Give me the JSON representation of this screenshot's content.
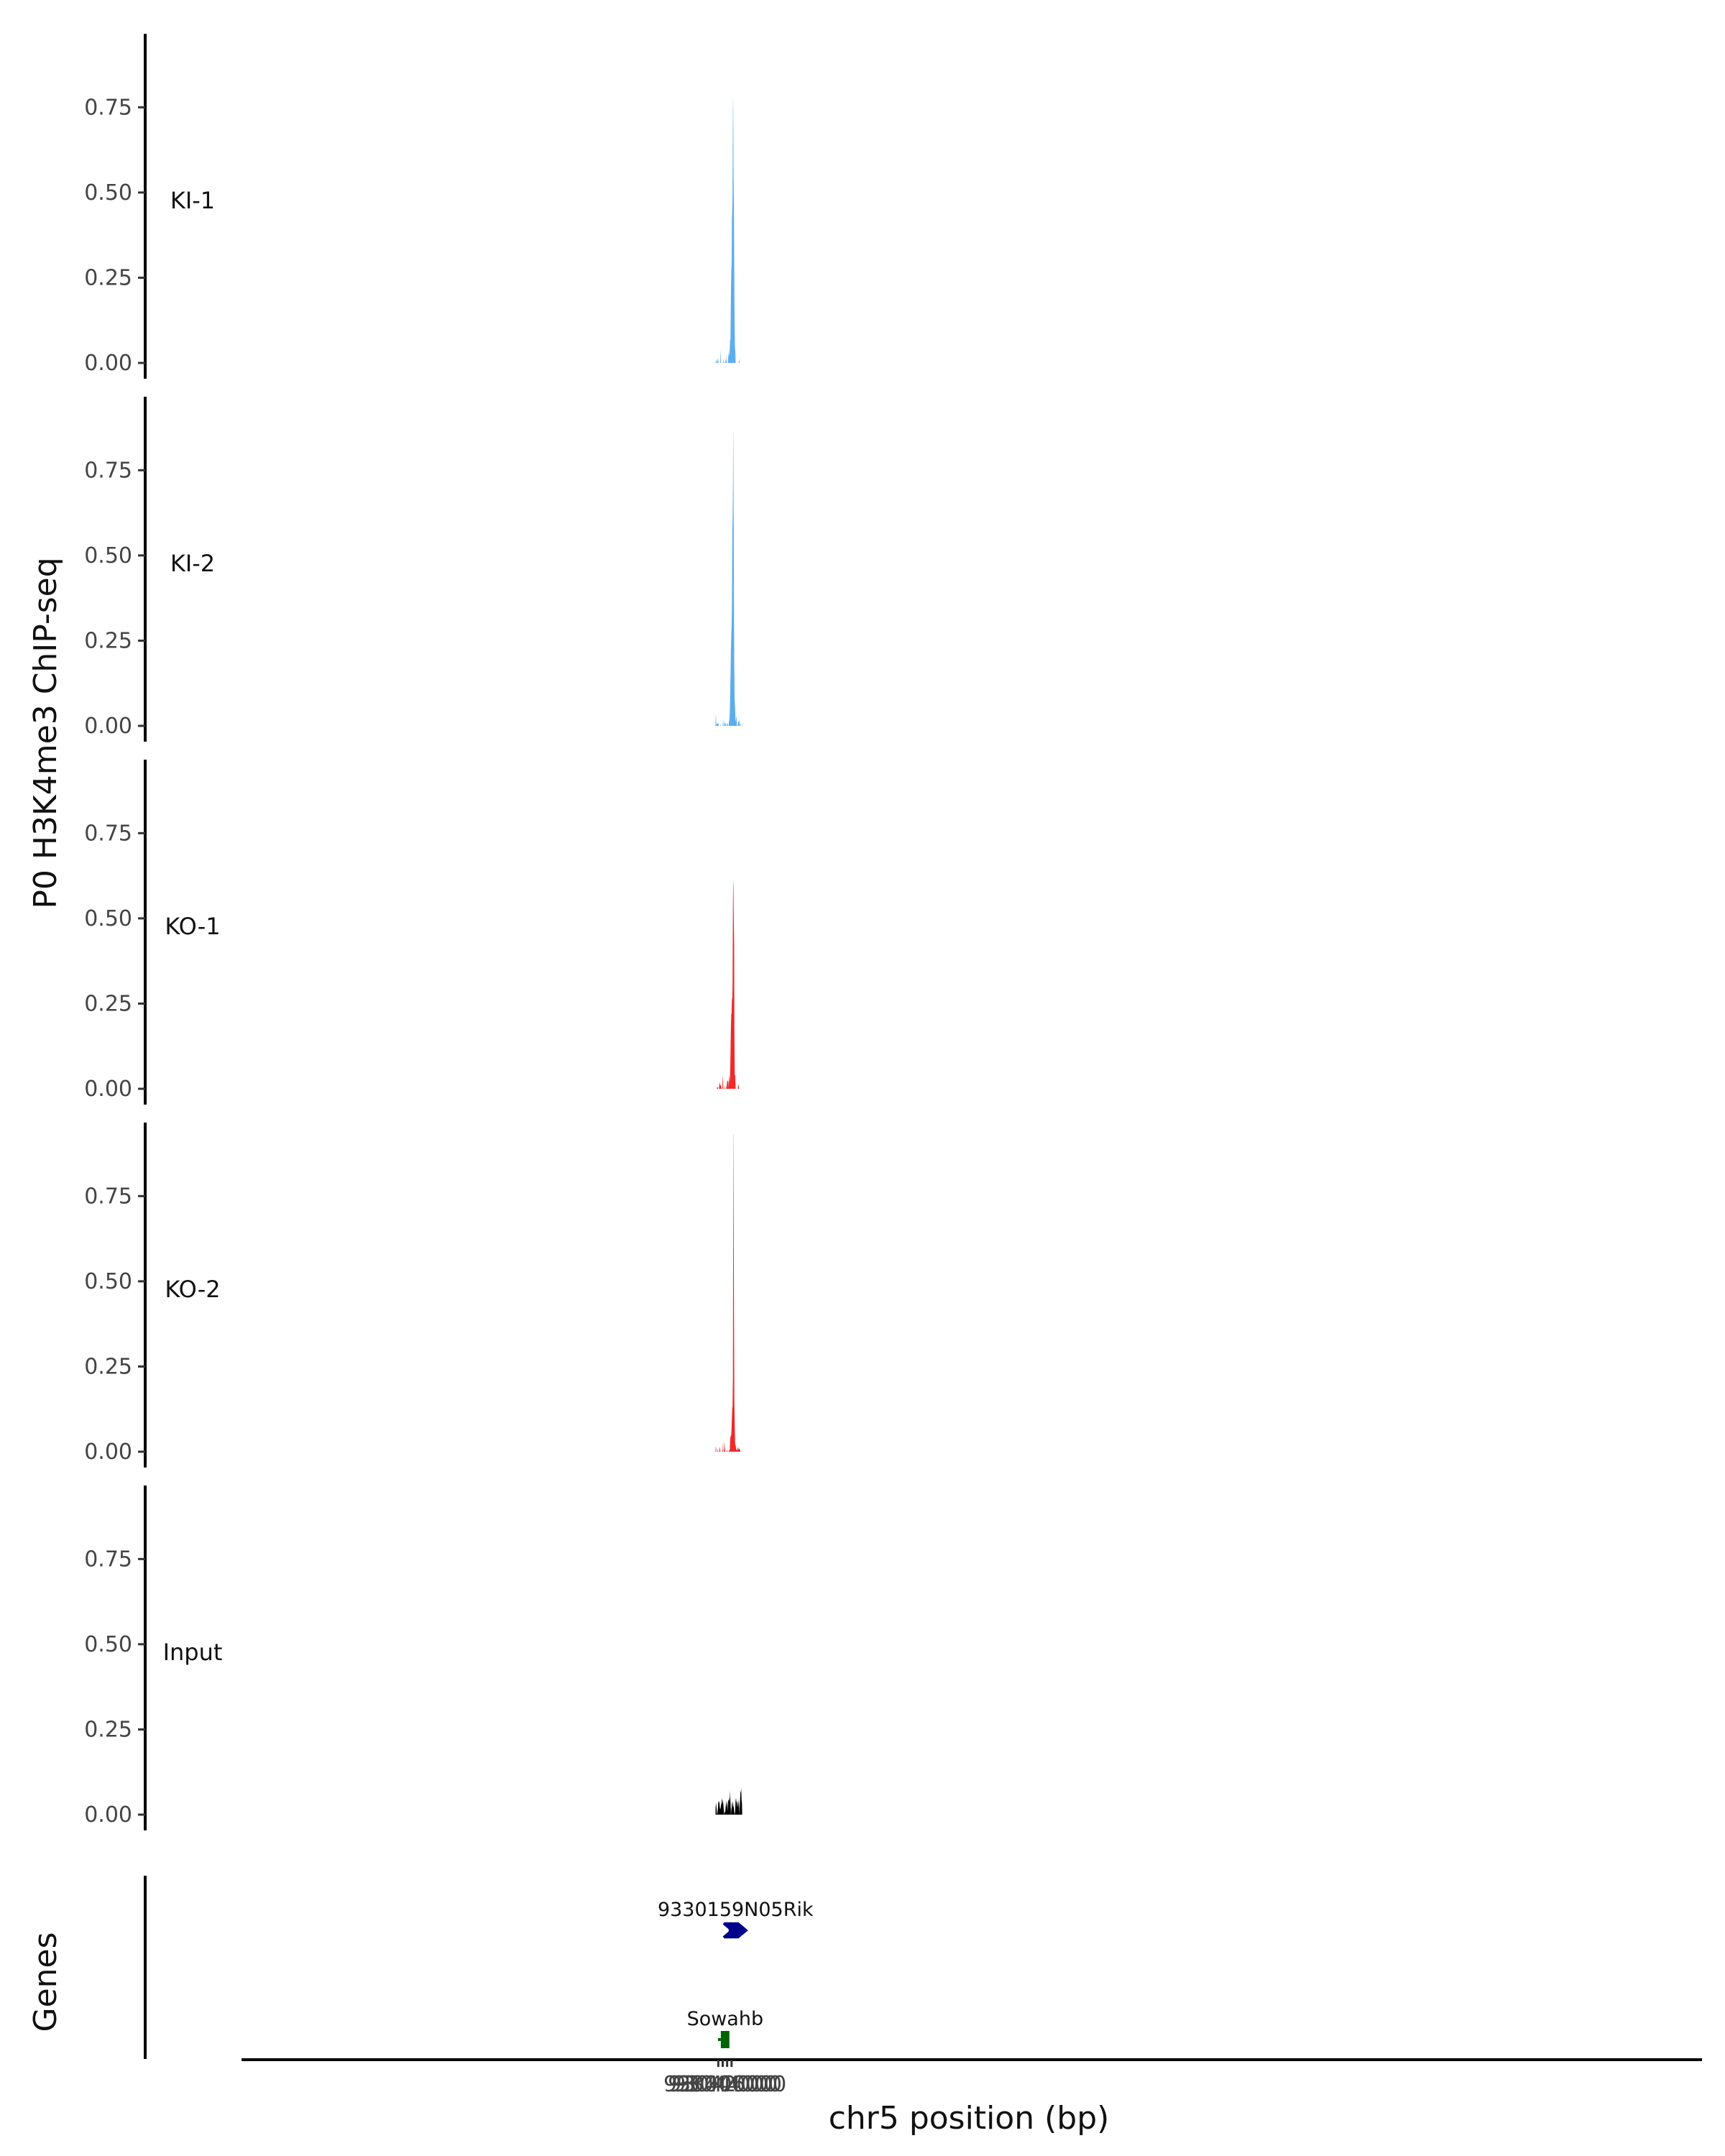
{
  "chart_data": {
    "type": "area",
    "ylabel": "P0 H3K4me3 ChIP-seq",
    "xlabel": "chr5 position (bp)",
    "xlim": [
      92826000,
      93480000
    ],
    "ylim": [
      0,
      0.97
    ],
    "yticks": [
      "0.00",
      "0.25",
      "0.50",
      "0.75"
    ],
    "ytick_values": [
      0,
      0.25,
      0.5,
      0.75
    ],
    "xticks": [
      "93040000",
      "93042000",
      "93044000",
      "93046000"
    ],
    "xtick_values": [
      93040000,
      93042000,
      93044000,
      93046000
    ],
    "series": [
      {
        "name": "KI-1",
        "color": "#5DADEC",
        "points": [
          [
            93038800,
            0.0
          ],
          [
            93039000,
            0.01
          ],
          [
            93039400,
            0.0
          ],
          [
            93039500,
            0.0
          ],
          [
            93039800,
            0.015
          ],
          [
            93040100,
            0.0
          ],
          [
            93040900,
            0.0
          ],
          [
            93041050,
            0.04
          ],
          [
            93041250,
            0.0
          ],
          [
            93042200,
            0.0
          ],
          [
            93042400,
            0.012
          ],
          [
            93042650,
            0.0
          ],
          [
            93043100,
            0.0
          ],
          [
            93043300,
            0.012
          ],
          [
            93043550,
            0.0
          ],
          [
            93043600,
            0.0
          ],
          [
            93043750,
            0.025
          ],
          [
            93043950,
            0.0
          ],
          [
            93044400,
            0.0
          ],
          [
            93044550,
            0.04
          ],
          [
            93044700,
            0.015
          ],
          [
            93044850,
            0.03
          ],
          [
            93045000,
            0.02
          ],
          [
            93045200,
            0.045
          ],
          [
            93045350,
            0.07
          ],
          [
            93045500,
            0.065
          ],
          [
            93045700,
            0.2
          ],
          [
            93045900,
            0.27
          ],
          [
            93046050,
            0.3
          ],
          [
            93046200,
            0.42
          ],
          [
            93046350,
            0.46
          ],
          [
            93046450,
            0.5
          ],
          [
            93046550,
            0.65
          ],
          [
            93046650,
            0.77
          ],
          [
            93046720,
            0.77
          ],
          [
            93046800,
            0.7
          ],
          [
            93046900,
            0.55
          ],
          [
            93047050,
            0.45
          ],
          [
            93047200,
            0.3
          ],
          [
            93047350,
            0.13
          ],
          [
            93047500,
            0.05
          ],
          [
            93047700,
            0.03
          ],
          [
            93047850,
            0.0
          ],
          [
            93049300,
            0.0
          ],
          [
            93049500,
            0.012
          ],
          [
            93049700,
            0.0
          ]
        ]
      },
      {
        "name": "KI-2",
        "color": "#5DADEC",
        "points": [
          [
            93038740,
            0.0
          ],
          [
            93038850,
            0.03
          ],
          [
            93038960,
            0.03
          ],
          [
            93039100,
            0.0
          ],
          [
            93039300,
            0.007
          ],
          [
            93039600,
            0.005
          ],
          [
            93039950,
            0.01
          ],
          [
            93040200,
            0.0
          ],
          [
            93040900,
            0.0
          ],
          [
            93041050,
            0.005
          ],
          [
            93041200,
            0.0
          ],
          [
            93042000,
            0.0
          ],
          [
            93042200,
            0.02
          ],
          [
            93042400,
            0.0
          ],
          [
            93042600,
            0.0
          ],
          [
            93042900,
            0.012
          ],
          [
            93043300,
            0.005
          ],
          [
            93043500,
            0.0
          ],
          [
            93043650,
            0.0
          ],
          [
            93044000,
            0.01
          ],
          [
            93044400,
            0.0
          ],
          [
            93044650,
            0.0
          ],
          [
            93044850,
            0.02
          ],
          [
            93045050,
            0.01
          ],
          [
            93045250,
            0.05
          ],
          [
            93045500,
            0.14
          ],
          [
            93045700,
            0.22
          ],
          [
            93045900,
            0.27
          ],
          [
            93046050,
            0.3
          ],
          [
            93046200,
            0.37
          ],
          [
            93046350,
            0.58
          ],
          [
            93046500,
            0.62
          ],
          [
            93046650,
            0.72
          ],
          [
            93046780,
            0.86
          ],
          [
            93046830,
            0.86
          ],
          [
            93046900,
            0.7
          ],
          [
            93047050,
            0.4
          ],
          [
            93047200,
            0.2
          ],
          [
            93047400,
            0.08
          ],
          [
            93047600,
            0.05
          ],
          [
            93047800,
            0.01
          ],
          [
            93048000,
            0.02
          ],
          [
            93048200,
            0.03
          ],
          [
            93048450,
            0.0
          ],
          [
            93048800,
            0.0
          ],
          [
            93049050,
            0.015
          ],
          [
            93049300,
            0.01
          ],
          [
            93049550,
            0.02
          ],
          [
            93049700,
            0.0
          ],
          [
            93049900,
            0.0
          ],
          [
            93050100,
            0.008
          ],
          [
            93050300,
            0.0
          ],
          [
            93050600,
            0.0
          ],
          [
            93050700,
            0.008
          ],
          [
            93050780,
            0.0
          ]
        ]
      },
      {
        "name": "KO-1",
        "color": "#EE2A2A",
        "points": [
          [
            93039300,
            0.0
          ],
          [
            93039500,
            0.006
          ],
          [
            93039800,
            0.004
          ],
          [
            93039950,
            0.0
          ],
          [
            93040300,
            0.0
          ],
          [
            93040600,
            0.02
          ],
          [
            93040900,
            0.01
          ],
          [
            93041200,
            0.01
          ],
          [
            93041500,
            0.0
          ],
          [
            93041850,
            0.0
          ],
          [
            93042000,
            0.035
          ],
          [
            93042100,
            0.037
          ],
          [
            93042300,
            0.0
          ],
          [
            93042650,
            0.0
          ],
          [
            93042800,
            0.01
          ],
          [
            93042950,
            0.0
          ],
          [
            93043400,
            0.0
          ],
          [
            93043550,
            0.01
          ],
          [
            93043700,
            0.0
          ],
          [
            93043750,
            0.0
          ],
          [
            93044000,
            0.025
          ],
          [
            93044150,
            0.02
          ],
          [
            93044350,
            0.025
          ],
          [
            93044550,
            0.02
          ],
          [
            93044700,
            0.0
          ],
          [
            93044650,
            0.0
          ],
          [
            93044850,
            0.025
          ],
          [
            93045050,
            0.04
          ],
          [
            93045250,
            0.02
          ],
          [
            93045450,
            0.07
          ],
          [
            93045650,
            0.17
          ],
          [
            93045850,
            0.22
          ],
          [
            93046000,
            0.22
          ],
          [
            93046200,
            0.27
          ],
          [
            93046350,
            0.26
          ],
          [
            93046450,
            0.3
          ],
          [
            93046600,
            0.52
          ],
          [
            93046700,
            0.6
          ],
          [
            93046800,
            0.61
          ],
          [
            93046900,
            0.57
          ],
          [
            93047000,
            0.5
          ],
          [
            93047150,
            0.43
          ],
          [
            93047300,
            0.15
          ],
          [
            93047450,
            0.04
          ],
          [
            93047650,
            0.04
          ],
          [
            93047850,
            0.0
          ],
          [
            93048800,
            0.0
          ],
          [
            93049000,
            0.015
          ],
          [
            93049300,
            0.005
          ],
          [
            93049500,
            0.0
          ]
        ]
      },
      {
        "name": "KO-2",
        "color": "#EE2A2A",
        "points": [
          [
            93038740,
            0.0
          ],
          [
            93038820,
            0.015
          ],
          [
            93039000,
            0.01
          ],
          [
            93039100,
            0.0
          ],
          [
            93039600,
            0.0
          ],
          [
            93039800,
            0.008
          ],
          [
            93040000,
            0.0
          ],
          [
            93040400,
            0.0
          ],
          [
            93040700,
            0.015
          ],
          [
            93040950,
            0.0
          ],
          [
            93041700,
            0.0
          ],
          [
            93041950,
            0.005
          ],
          [
            93042000,
            0.03
          ],
          [
            93042200,
            0.0
          ],
          [
            93042500,
            0.0
          ],
          [
            93042700,
            0.03
          ],
          [
            93042900,
            0.01
          ],
          [
            93043100,
            0.0
          ],
          [
            93043350,
            0.0
          ],
          [
            93043550,
            0.005
          ],
          [
            93043700,
            0.0
          ],
          [
            93044000,
            0.0
          ],
          [
            93044200,
            0.005
          ],
          [
            93044400,
            0.0
          ],
          [
            93044700,
            0.0
          ],
          [
            93045000,
            0.005
          ],
          [
            93045200,
            0.005
          ],
          [
            93045400,
            0.04
          ],
          [
            93045500,
            0.05
          ],
          [
            93045700,
            0.04
          ],
          [
            93045950,
            0.06
          ],
          [
            93046100,
            0.09
          ],
          [
            93046300,
            0.13
          ],
          [
            93046450,
            0.13
          ],
          [
            93046600,
            0.22
          ],
          [
            93046700,
            0.55
          ],
          [
            93046800,
            0.93
          ],
          [
            93046870,
            0.93
          ],
          [
            93046950,
            0.7
          ],
          [
            93047100,
            0.4
          ],
          [
            93047250,
            0.15
          ],
          [
            93047450,
            0.07
          ],
          [
            93047650,
            0.02
          ],
          [
            93047800,
            0.02
          ],
          [
            93048000,
            0.01
          ],
          [
            93048300,
            0.005
          ],
          [
            93048600,
            0.005
          ],
          [
            93048900,
            0.015
          ],
          [
            93049200,
            0.005
          ],
          [
            93049500,
            0.01
          ],
          [
            93049850,
            0.005
          ],
          [
            93050000,
            0.0
          ]
        ]
      },
      {
        "name": "Input",
        "color": "#000000",
        "points": [
          [
            93038740,
            0.0
          ],
          [
            93038800,
            0.02
          ],
          [
            93039000,
            0.035
          ],
          [
            93039200,
            0.02
          ],
          [
            93039400,
            0.0
          ],
          [
            93039600,
            0.005
          ],
          [
            93039850,
            0.02
          ],
          [
            93040050,
            0.04
          ],
          [
            93040250,
            0.035
          ],
          [
            93040450,
            0.04
          ],
          [
            93040650,
            0.025
          ],
          [
            93040850,
            0.015
          ],
          [
            93041100,
            0.02
          ],
          [
            93041300,
            0.03
          ],
          [
            93041500,
            0.035
          ],
          [
            93041700,
            0.05
          ],
          [
            93041900,
            0.03
          ],
          [
            93042100,
            0.045
          ],
          [
            93042300,
            0.03
          ],
          [
            93042500,
            0.015
          ],
          [
            93042700,
            0.0
          ],
          [
            93042900,
            0.01
          ],
          [
            93043100,
            0.005
          ],
          [
            93043300,
            0.02
          ],
          [
            93043500,
            0.04
          ],
          [
            93043700,
            0.02
          ],
          [
            93043900,
            0.04
          ],
          [
            93044100,
            0.03
          ],
          [
            93044300,
            0.01
          ],
          [
            93044500,
            0.045
          ],
          [
            93044700,
            0.04
          ],
          [
            93044900,
            0.05
          ],
          [
            93045100,
            0.035
          ],
          [
            93045300,
            0.07
          ],
          [
            93045500,
            0.04
          ],
          [
            93045650,
            0.01
          ],
          [
            93045700,
            0.0
          ],
          [
            93045750,
            0.0
          ],
          [
            93045850,
            0.015
          ],
          [
            93046050,
            0.02
          ],
          [
            93046250,
            0.04
          ],
          [
            93046450,
            0.02
          ],
          [
            93046650,
            0.04
          ],
          [
            93046850,
            0.025
          ],
          [
            93047050,
            0.02
          ],
          [
            93047250,
            0.005
          ],
          [
            93047400,
            0.0
          ],
          [
            93047600,
            0.01
          ],
          [
            93047800,
            0.04
          ],
          [
            93048000,
            0.05
          ],
          [
            93048200,
            0.035
          ],
          [
            93048400,
            0.04
          ],
          [
            93048600,
            0.02
          ],
          [
            93048800,
            0.04
          ],
          [
            93049000,
            0.02
          ],
          [
            93049200,
            0.045
          ],
          [
            93049400,
            0.03
          ],
          [
            93049550,
            0.0
          ],
          [
            93049750,
            0.03
          ],
          [
            93049900,
            0.05
          ],
          [
            93050050,
            0.07
          ],
          [
            93050200,
            0.065
          ],
          [
            93050350,
            0.08
          ],
          [
            93050500,
            0.045
          ],
          [
            93050700,
            0.035
          ],
          [
            93050780,
            0.0
          ]
        ]
      }
    ],
    "genes": {
      "title": "Genes",
      "items": [
        {
          "name": "9330159N05Rik",
          "start": 93044700,
          "end": 93050850,
          "strand": "+",
          "color": "#00008B"
        },
        {
          "name": "Sowahb",
          "start": 93041150,
          "end": 93045020,
          "strand": "+",
          "color": "#006400"
        }
      ]
    }
  }
}
